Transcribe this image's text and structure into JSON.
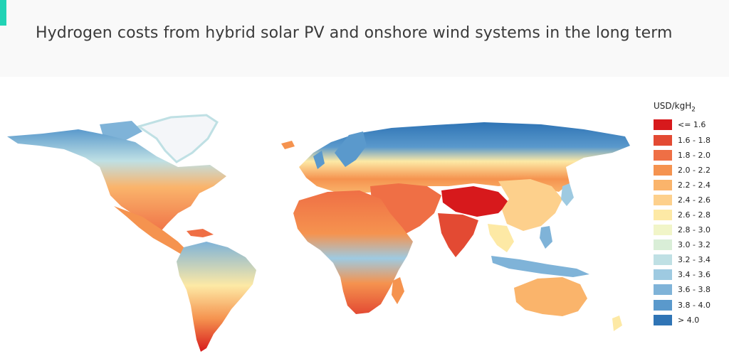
{
  "header": {
    "title": "Hydrogen costs from hybrid solar PV and onshore wind systems in the long term",
    "accent_color": "#22d3b5"
  },
  "legend": {
    "unit_main": "USD/kgH",
    "unit_sub": "2",
    "items": [
      {
        "label": "<= 1.6",
        "color": "#d7191c"
      },
      {
        "label": "1.6 - 1.8",
        "color": "#e34a33"
      },
      {
        "label": "1.8 - 2.0",
        "color": "#ef6f45"
      },
      {
        "label": "2.0 - 2.2",
        "color": "#f5934f"
      },
      {
        "label": "2.2 - 2.4",
        "color": "#fab46b"
      },
      {
        "label": "2.4 - 2.6",
        "color": "#fdd08c"
      },
      {
        "label": "2.6 - 2.8",
        "color": "#fde9a5"
      },
      {
        "label": "2.8 - 3.0",
        "color": "#f1f5c8"
      },
      {
        "label": "3.0 - 3.2",
        "color": "#d9eed7"
      },
      {
        "label": "3.2 - 3.4",
        "color": "#bfe0e4"
      },
      {
        "label": "3.4 - 3.6",
        "color": "#9ecae1"
      },
      {
        "label": "3.6 - 3.8",
        "color": "#7fb3d8"
      },
      {
        "label": "3.8 - 4.0",
        "color": "#5a99cc"
      },
      {
        "label": "> 4.0",
        "color": "#2f74b5"
      }
    ]
  }
}
